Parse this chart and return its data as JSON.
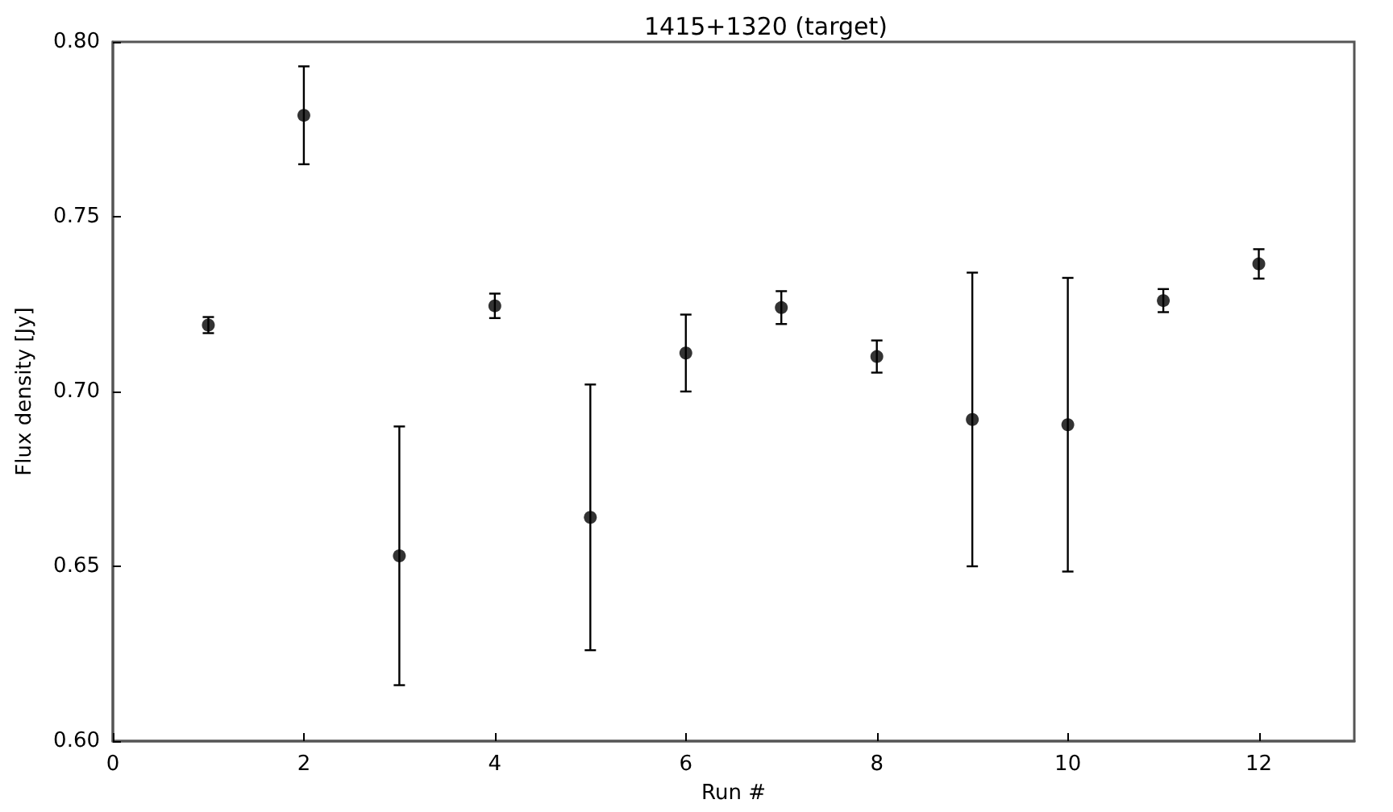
{
  "chart_data": {
    "type": "scatter",
    "title": "1415+1320 (target)",
    "xlabel": "Run #",
    "ylabel": "Flux density [Jy]",
    "x": [
      1,
      2,
      3,
      4,
      5,
      6,
      7,
      8,
      9,
      10,
      11,
      12
    ],
    "series": [
      {
        "color": "#000000",
        "values": [
          0.719,
          0.779,
          0.653,
          0.7245,
          0.664,
          0.711,
          0.724,
          0.71,
          0.692,
          0.6905,
          0.726,
          0.7365
        ],
        "errors": [
          0.0023,
          0.014,
          0.037,
          0.0035,
          0.038,
          0.011,
          0.0047,
          0.0046,
          0.042,
          0.042,
          0.0033,
          0.0042
        ]
      }
    ],
    "xlim": [
      0,
      13
    ],
    "xticks": [
      0,
      2,
      4,
      6,
      8,
      10,
      12
    ],
    "ylim": [
      0.6,
      0.8
    ],
    "yticks": [
      {
        "value": 0.6,
        "label": "0.60"
      },
      0.65,
      {
        "value": 0.7,
        "label": "0.70"
      },
      0.75,
      {
        "value": 0.8,
        "label": "0.80"
      }
    ],
    "grid": false,
    "marker": "circle"
  }
}
